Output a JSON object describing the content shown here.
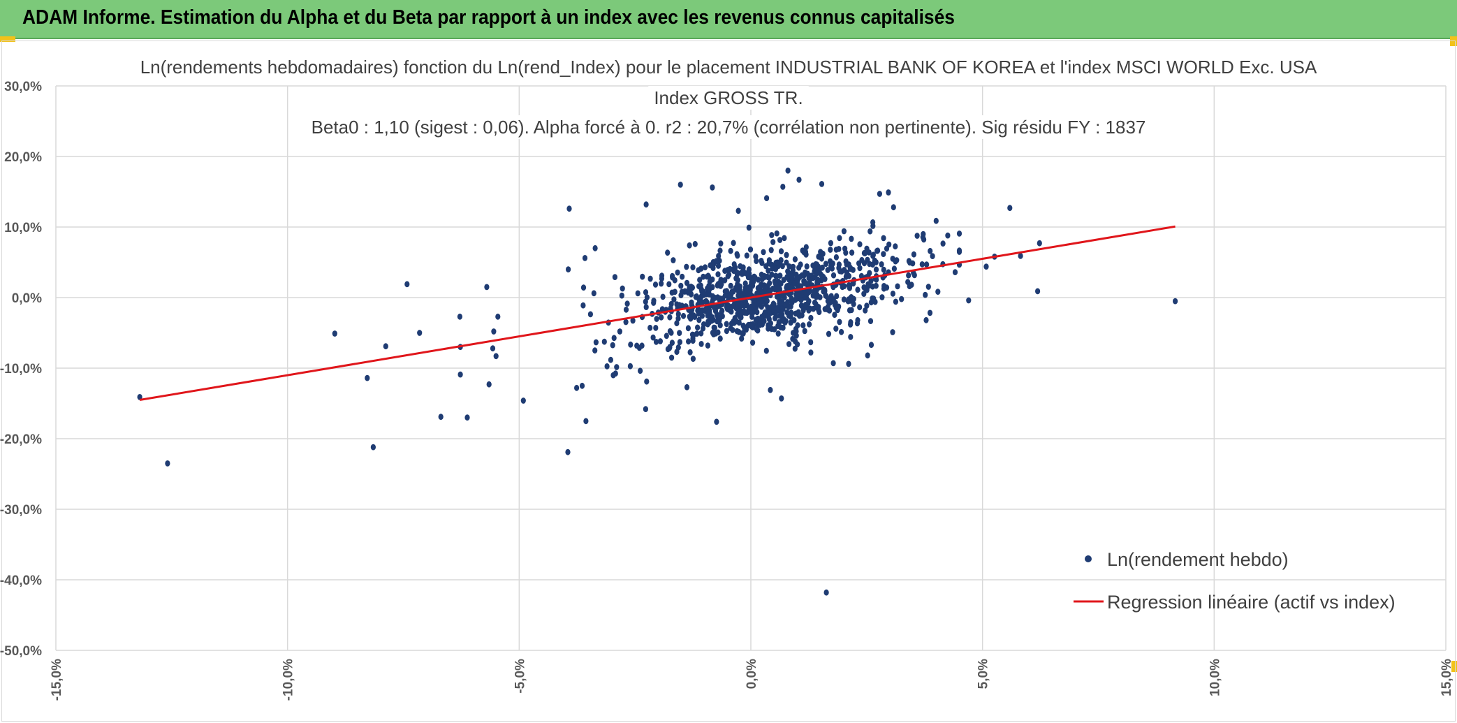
{
  "banner": {
    "title": "ADAM Informe. Estimation du Alpha et du Beta par rapport à un index avec les revenus connus capitalisés",
    "background": "#7cc97a"
  },
  "chart_data": {
    "type": "scatter",
    "title_lines": [
      "Ln(rendements hebdomadaires) fonction du Ln(rend_Index) pour le placement INDUSTRIAL BANK OF KOREA et l'index MSCI WORLD Exc. USA",
      "Index GROSS TR.",
      "Beta0 : 1,10 (sigest : 0,06). Alpha forcé à 0. r2 : 20,7% (corrélation non pertinente). Sig résidu FY : 1837"
    ],
    "xlim": [
      -0.15,
      0.15
    ],
    "ylim": [
      -0.5,
      0.3
    ],
    "x_ticks": [
      -0.15,
      -0.1,
      -0.05,
      0.0,
      0.05,
      0.1,
      0.15
    ],
    "x_tick_labels": [
      "-15,0%",
      "-10,0%",
      "-5,0%",
      "0,0%",
      "5,0%",
      "10,0%",
      "15,0%"
    ],
    "y_ticks": [
      0.3,
      0.2,
      0.1,
      0.0,
      -0.1,
      -0.2,
      -0.3,
      -0.4,
      -0.5
    ],
    "y_tick_labels": [
      "30,0%",
      "20,0%",
      "10,0%",
      "0,0%",
      "-10,0%",
      "-20,0%",
      "-30,0%",
      "-40,0%",
      "-50,0%"
    ],
    "grid": true,
    "legend_position": "bottom-right",
    "colors": {
      "points": "#1f3c73",
      "line": "#e0161b",
      "grid": "#d9d9d9",
      "axis_text": "#595959"
    },
    "series": [
      {
        "name": "Ln(rendement hebdo)",
        "kind": "scatter",
        "note": "1000+ weekly points; dense cluster near origin approximated as a seeded cloud, outliers listed explicitly",
        "points": [
          [
            -0.1319,
            -0.141
          ],
          [
            -0.1259,
            -0.235
          ],
          [
            -0.0898,
            -0.051
          ],
          [
            -0.0828,
            -0.114
          ],
          [
            -0.0815,
            -0.212
          ],
          [
            -0.0788,
            -0.069
          ],
          [
            -0.0742,
            0.019
          ],
          [
            -0.0715,
            -0.05
          ],
          [
            -0.0669,
            -0.169
          ],
          [
            -0.0628,
            -0.027
          ],
          [
            -0.0627,
            -0.109
          ],
          [
            -0.0627,
            -0.07
          ],
          [
            -0.0612,
            -0.17
          ],
          [
            -0.057,
            0.015
          ],
          [
            -0.0565,
            -0.123
          ],
          [
            -0.0557,
            -0.072
          ],
          [
            -0.0555,
            -0.048
          ],
          [
            -0.055,
            -0.083
          ],
          [
            -0.0546,
            -0.027
          ],
          [
            -0.0491,
            -0.146
          ],
          [
            -0.0392,
            0.126
          ],
          [
            -0.0394,
            0.04
          ],
          [
            -0.0395,
            -0.219
          ],
          [
            -0.0376,
            -0.128
          ],
          [
            -0.0364,
            -0.125
          ],
          [
            -0.0356,
            -0.175
          ],
          [
            -0.0358,
            0.056
          ],
          [
            -0.0336,
            0.07
          ],
          [
            -0.0297,
            -0.11
          ],
          [
            -0.0226,
            0.132
          ],
          [
            -0.0225,
            -0.119
          ],
          [
            -0.0227,
            -0.158
          ],
          [
            -0.0152,
            0.16
          ],
          [
            -0.0138,
            -0.127
          ],
          [
            -0.0083,
            0.156
          ],
          [
            -0.0074,
            -0.176
          ],
          [
            -0.0027,
            0.123
          ],
          [
            0.0034,
            0.141
          ],
          [
            0.0069,
            0.157
          ],
          [
            0.008,
            0.18
          ],
          [
            0.0104,
            0.167
          ],
          [
            0.0153,
            0.161
          ],
          [
            0.0066,
            -0.143
          ],
          [
            0.0042,
            -0.131
          ],
          [
            0.0163,
            -0.418
          ],
          [
            0.0278,
            0.147
          ],
          [
            0.0297,
            0.149
          ],
          [
            0.0308,
            0.128
          ],
          [
            0.0372,
            0.09
          ],
          [
            0.0387,
            0.066
          ],
          [
            0.0425,
            0.088
          ],
          [
            0.0441,
            0.036
          ],
          [
            0.047,
            -0.004
          ],
          [
            0.0508,
            0.044
          ],
          [
            0.0526,
            0.058
          ],
          [
            0.0559,
            0.127
          ],
          [
            0.0582,
            0.059
          ],
          [
            0.0623,
            0.077
          ],
          [
            0.0619,
            0.009
          ],
          [
            0.0916,
            -0.005
          ],
          [
            0.026,
            -0.067
          ],
          [
            0.0211,
            -0.094
          ],
          [
            0.0178,
            -0.093
          ],
          [
            0.0252,
            -0.082
          ],
          [
            0.0306,
            -0.049
          ]
        ],
        "cloud": {
          "count": 950,
          "seed": 20240607,
          "x_mean": 0.003,
          "x_sd": 0.015,
          "y_sd": 0.032
        }
      },
      {
        "name": "Regression linéaire (actif vs index)",
        "kind": "line",
        "beta": 1.1,
        "x_range": [
          -0.1319,
          0.0916
        ]
      }
    ]
  }
}
